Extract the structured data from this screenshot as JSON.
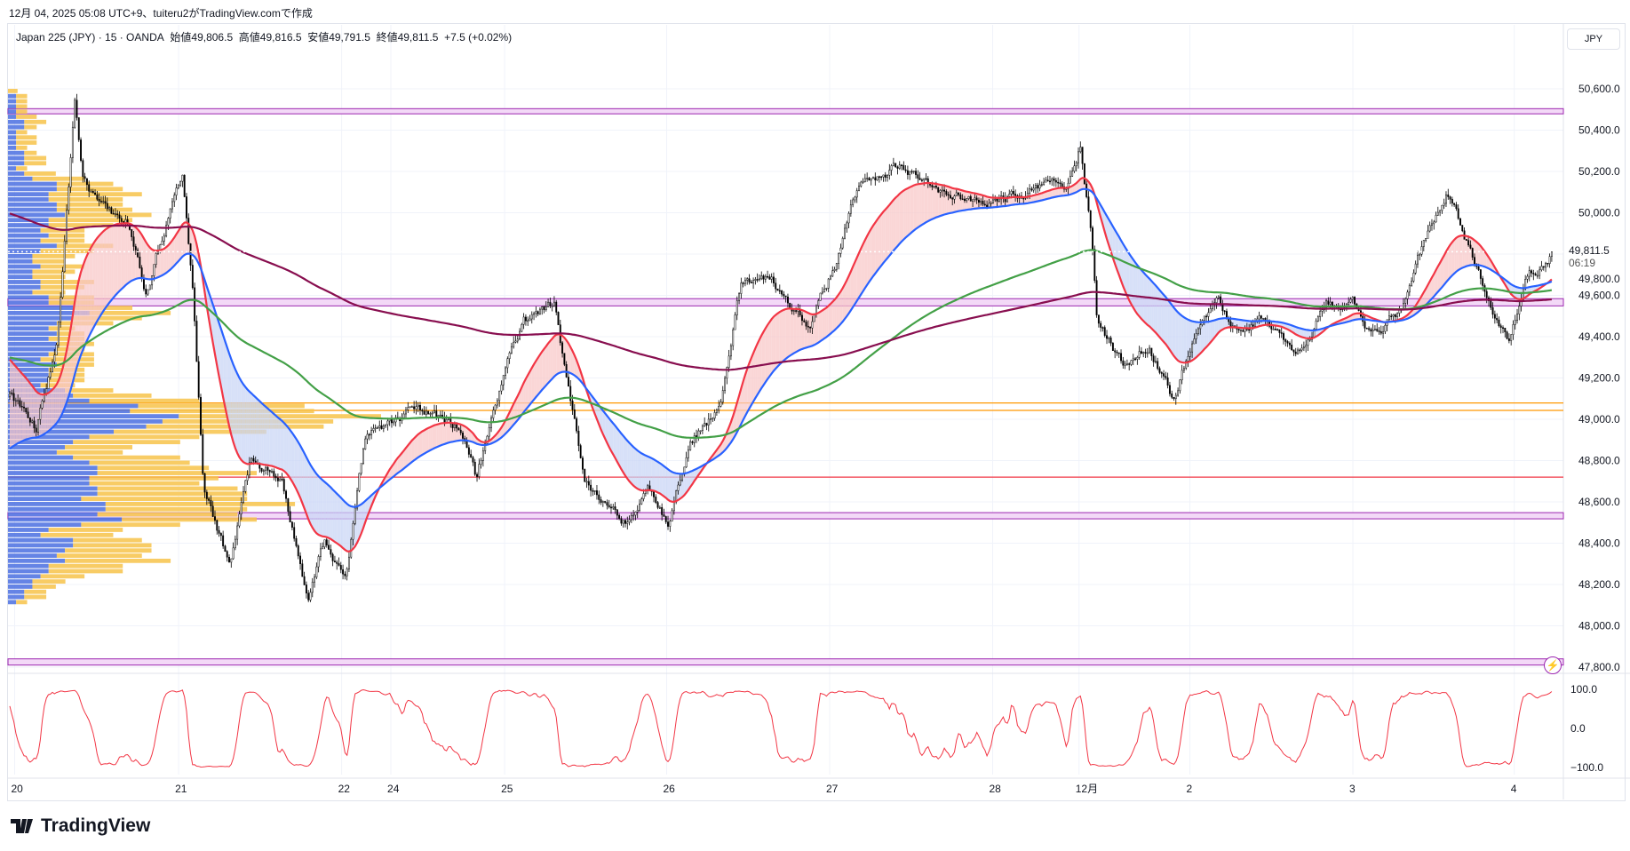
{
  "header": {
    "created": "12月 04, 2025 05:08 UTC+9、tuiteru2がTradingView.comで作成"
  },
  "legend": {
    "symbol": "Japan 225 (JPY) · 15 · OANDA",
    "open": "始値49,806.5",
    "high": "高値49,816.5",
    "low": "安値49,791.5",
    "close": "終値49,811.5",
    "change": "+7.5 (+0.02%)"
  },
  "currency": "JPY",
  "last_price": {
    "value": "49,811.5",
    "countdown": "06:19"
  },
  "brand": {
    "name": "TradingView"
  },
  "colors": {
    "up_fill": "#f8c8c8",
    "down_fill": "#c9d6f5",
    "red": "#f23645",
    "blue": "#2962ff",
    "green": "#43a047",
    "maroon": "#880e4f",
    "purple": "#9c27b0",
    "orange": "#ff9800",
    "vp_blue": "#4a6ee0",
    "vp_orange": "#f7c34a"
  },
  "chart_data": {
    "type": "candlestick",
    "price_ticks": [
      "50,600.0",
      "50,400.0",
      "50,200.0",
      "50,000.0",
      "49,800.0",
      "49,600.0",
      "49,400.0",
      "49,200.0",
      "49,000.0",
      "48,800.0",
      "48,600.0",
      "48,400.0",
      "48,200.0",
      "48,000.0",
      "47,800.0"
    ],
    "price_tick_values": [
      50600,
      50400,
      50200,
      50000,
      49800,
      49600,
      49400,
      49200,
      49000,
      48800,
      48600,
      48400,
      48200,
      48000,
      47800
    ],
    "osc_ticks": [
      "100.0",
      "0.0",
      "−100.0"
    ],
    "osc_tick_values": [
      100,
      0,
      -100
    ],
    "time_ticks": [
      {
        "label": "20",
        "day": 0
      },
      {
        "label": "21",
        "day": 1.006
      },
      {
        "label": "22",
        "day": 2.006
      },
      {
        "label": "24",
        "day": 2.308
      },
      {
        "label": "25",
        "day": 3.006
      },
      {
        "label": "26",
        "day": 4.0
      },
      {
        "label": "27",
        "day": 5.0
      },
      {
        "label": "28",
        "day": 6.0
      },
      {
        "label": "12月",
        "day": 6.53
      },
      {
        "label": "2",
        "day": 7.21
      },
      {
        "label": "3",
        "day": 8.21
      },
      {
        "label": "4",
        "day": 9.2
      }
    ],
    "price_path": [
      [
        -0.03,
        49109
      ],
      [
        0.13,
        48957
      ],
      [
        0.26,
        49362
      ],
      [
        0.37,
        50549
      ],
      [
        0.42,
        50170
      ],
      [
        0.55,
        50019
      ],
      [
        0.68,
        49968
      ],
      [
        0.81,
        49614
      ],
      [
        0.97,
        50069
      ],
      [
        1.03,
        50170
      ],
      [
        1.1,
        49513
      ],
      [
        1.16,
        48654
      ],
      [
        1.32,
        48300
      ],
      [
        1.45,
        48806
      ],
      [
        1.64,
        48705
      ],
      [
        1.8,
        48098
      ],
      [
        1.9,
        48401
      ],
      [
        2.03,
        48199
      ],
      [
        2.15,
        48907
      ],
      [
        2.47,
        49058
      ],
      [
        2.73,
        48957
      ],
      [
        2.83,
        48705
      ],
      [
        2.99,
        49210
      ],
      [
        3.12,
        49463
      ],
      [
        3.31,
        49564
      ],
      [
        3.37,
        49261
      ],
      [
        3.5,
        48705
      ],
      [
        3.76,
        48503
      ],
      [
        3.88,
        48654
      ],
      [
        4.01,
        48503
      ],
      [
        4.14,
        48907
      ],
      [
        4.33,
        49058
      ],
      [
        4.46,
        49665
      ],
      [
        4.65,
        49665
      ],
      [
        4.88,
        49463
      ],
      [
        5.04,
        49766
      ],
      [
        5.17,
        50120
      ],
      [
        5.42,
        50220
      ],
      [
        5.68,
        50120
      ],
      [
        5.94,
        50044
      ],
      [
        6.19,
        50095
      ],
      [
        6.45,
        50145
      ],
      [
        6.54,
        50347
      ],
      [
        6.61,
        49867
      ],
      [
        6.64,
        49463
      ],
      [
        6.8,
        49261
      ],
      [
        6.96,
        49362
      ],
      [
        7.12,
        49084
      ],
      [
        7.25,
        49463
      ],
      [
        7.38,
        49564
      ],
      [
        7.51,
        49412
      ],
      [
        7.67,
        49513
      ],
      [
        7.86,
        49261
      ],
      [
        8.05,
        49564
      ],
      [
        8.21,
        49564
      ],
      [
        8.31,
        49412
      ],
      [
        8.5,
        49513
      ],
      [
        8.63,
        49817
      ],
      [
        8.79,
        50120
      ],
      [
        8.88,
        49918
      ],
      [
        9.01,
        49665
      ],
      [
        9.17,
        49362
      ],
      [
        9.27,
        49665
      ],
      [
        9.43,
        49811
      ]
    ],
    "levels": [
      {
        "kind": "band",
        "color": "purple",
        "from": 50479,
        "to": 50504
      },
      {
        "kind": "band",
        "color": "purple",
        "from": 49549,
        "to": 49584
      },
      {
        "kind": "band",
        "color": "purple",
        "from": 48518,
        "to": 48548
      },
      {
        "kind": "band",
        "color": "purple",
        "from": 47810,
        "to": 47840
      },
      {
        "kind": "line",
        "color": "orange",
        "at": 49079
      },
      {
        "kind": "line",
        "color": "orange",
        "at": 49043
      },
      {
        "kind": "line",
        "color": "red",
        "at": 48720
      }
    ],
    "moving_averages": [
      {
        "name": "fast",
        "color": "red",
        "period": 30,
        "init": 49300
      },
      {
        "name": "mid",
        "color": "blue",
        "period": 70,
        "init": 48850
      },
      {
        "name": "slow",
        "color": "green",
        "period": 220,
        "init": 49300
      },
      {
        "name": "long",
        "color": "maroon",
        "period": 520,
        "init": 50000
      }
    ],
    "price_range": [
      47700,
      50750
    ],
    "osc_range": [
      -115,
      115
    ]
  }
}
